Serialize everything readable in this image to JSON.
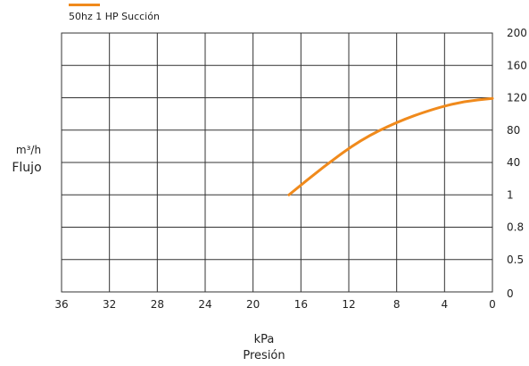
{
  "chart_data": {
    "type": "line",
    "legend": {
      "position": "top-left",
      "entries": [
        {
          "label": "50hz 1 HP Succión",
          "color": "#F08A1C"
        }
      ]
    },
    "xlabel": {
      "unit": "kPa",
      "name": "Presión"
    },
    "ylabel": {
      "unit": "m³/h",
      "name": "Flujo"
    },
    "x_ticks": [
      "36",
      "32",
      "28",
      "24",
      "20",
      "16",
      "12",
      "8",
      "4",
      "0"
    ],
    "y_ticks": [
      "0",
      "0.5",
      "0.8",
      "1",
      "40",
      "80",
      "120",
      "160",
      "200"
    ],
    "x_reversed": true,
    "grid": true,
    "xlim": [
      36,
      0
    ],
    "y_tick_positions": [
      0,
      1,
      2,
      3,
      4,
      5,
      6,
      7,
      8
    ],
    "series": [
      {
        "name": "50hz 1 HP Succión",
        "color": "#F08A1C",
        "points": [
          {
            "x": 17.0,
            "y_index": 3.0
          },
          {
            "x": 14.0,
            "y_index": 3.9
          },
          {
            "x": 11.0,
            "y_index": 4.7
          },
          {
            "x": 8.0,
            "y_index": 5.25
          },
          {
            "x": 5.0,
            "y_index": 5.65
          },
          {
            "x": 2.5,
            "y_index": 5.88
          },
          {
            "x": 0.0,
            "y_index": 5.98
          }
        ]
      }
    ]
  }
}
